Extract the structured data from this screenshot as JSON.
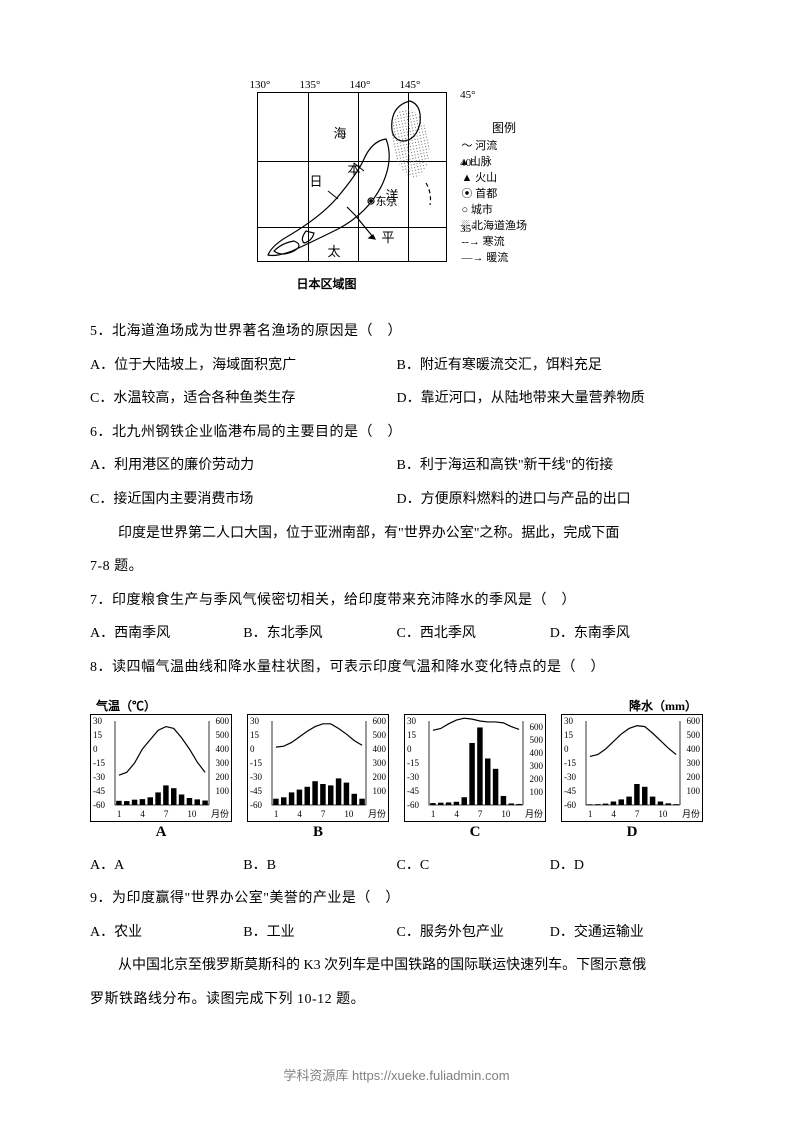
{
  "map": {
    "lons": [
      "130°",
      "135°",
      "140°",
      "145°"
    ],
    "lats": [
      "45°",
      "40°",
      "35°"
    ],
    "labels": {
      "sea": "海",
      "ri": "日",
      "ben": "本",
      "yang": "洋",
      "tai": "太",
      "ping": "平",
      "tokyo": "东京"
    },
    "legendTitle": "图例",
    "legend": [
      "河流",
      "山脉",
      "火山",
      "首都",
      "城市",
      "北海道渔场",
      "寒流",
      "暖流"
    ],
    "legendIcons": [
      "〜",
      "▴",
      "▲",
      "⦿",
      "○",
      "░",
      "--→",
      "—→"
    ],
    "caption": "日本区域图"
  },
  "q5": {
    "stem": "5．北海道渔场成为世界著名渔场的原因是（　）",
    "A": "A．位于大陆坡上，海域面积宽广",
    "B": "B．附近有寒暖流交汇，饵料充足",
    "C": "C．水温较高，适合各种鱼类生存",
    "D": "D．靠近河口，从陆地带来大量营养物质"
  },
  "q6": {
    "stem": "6．北九州钢铁企业临港布局的主要目的是（　）",
    "A": "A．利用港区的廉价劳动力",
    "B": "B．利于海运和高铁\"新干线\"的衔接",
    "C": "C．接近国内主要消费市场",
    "D": "D．方便原料燃料的进口与产品的出口"
  },
  "intro78": "印度是世界第二人口大国，位于亚洲南部，有\"世界办公室\"之称。据此，完成下面",
  "intro78b": "7-8 题。",
  "q7": {
    "stem": "7．印度粮食生产与季风气候密切相关，给印度带来充沛降水的季风是（　）",
    "A": "A．西南季风",
    "B": "B．东北季风",
    "C": "C．西北季风",
    "D": "D．东南季风"
  },
  "q8stem": "8．读四幅气温曲线和降水量柱状图，可表示印度气温和降水变化特点的是（　）",
  "chartHeaders": {
    "left": "气温（℃）",
    "right": "降水（mm）"
  },
  "charts": {
    "monthLabel": "月份",
    "xTicks": [
      "1",
      "4",
      "7",
      "10"
    ],
    "A": {
      "type": "climograph",
      "tempTicks": [
        "30",
        "15",
        "0",
        "-15",
        "-30",
        "-45",
        "-60"
      ],
      "precipTicks": [
        "600",
        "500",
        "400",
        "300",
        "200",
        "100"
      ],
      "temp": [
        -28,
        -25,
        -15,
        0,
        10,
        20,
        24,
        22,
        12,
        0,
        -14,
        -25
      ],
      "precip": [
        30,
        28,
        38,
        42,
        55,
        90,
        140,
        120,
        75,
        50,
        40,
        32
      ],
      "precipMax": 600,
      "barColor": "#000000",
      "lineColor": "#000000",
      "bg": "#ffffff"
    },
    "B": {
      "type": "climograph",
      "tempTicks": [
        "30",
        "15",
        "0",
        "-15",
        "-30",
        "-45",
        "-60"
      ],
      "precipTicks": [
        "600",
        "500",
        "400",
        "300",
        "200",
        "100"
      ],
      "temp": [
        2,
        3,
        7,
        13,
        19,
        24,
        27,
        27,
        22,
        16,
        9,
        4
      ],
      "precip": [
        45,
        55,
        90,
        110,
        130,
        170,
        150,
        140,
        190,
        160,
        80,
        45
      ],
      "precipMax": 600,
      "barColor": "#000000",
      "lineColor": "#000000",
      "bg": "#ffffff"
    },
    "C": {
      "type": "climograph",
      "tempTicks": [
        "30",
        "15",
        "0",
        "-15",
        "-30",
        "-45",
        "-60"
      ],
      "precipTicks": [
        "600",
        "500",
        "400",
        "300",
        "200",
        "100"
      ],
      "temp": [
        20,
        22,
        27,
        31,
        33,
        32,
        30,
        29,
        29,
        28,
        24,
        21
      ],
      "precip": [
        15,
        18,
        20,
        25,
        60,
        480,
        600,
        360,
        280,
        70,
        12,
        8
      ],
      "precipMax": 650,
      "barColor": "#000000",
      "lineColor": "#000000",
      "bg": "#ffffff"
    },
    "D": {
      "type": "climograph",
      "tempTicks": [
        "30",
        "15",
        "0",
        "-15",
        "-30",
        "-45",
        "-60"
      ],
      "precipTicks": [
        "600",
        "500",
        "400",
        "300",
        "200",
        "100"
      ],
      "temp": [
        -8,
        -6,
        0,
        8,
        16,
        22,
        25,
        24,
        17,
        9,
        1,
        -6
      ],
      "precip": [
        5,
        6,
        10,
        25,
        40,
        60,
        150,
        130,
        60,
        25,
        12,
        6
      ],
      "precipMax": 600,
      "barColor": "#000000",
      "lineColor": "#000000",
      "bg": "#ffffff"
    }
  },
  "q8opts": {
    "A": "A．A",
    "B": "B．B",
    "C": "C．C",
    "D": "D．D"
  },
  "q9": {
    "stem": "9．为印度赢得\"世界办公室\"美誉的产业是（　）",
    "A": "A．农业",
    "B": "B．工业",
    "C": "C．服务外包产业",
    "D": "D．交通运输业"
  },
  "intro1012a": "从中国北京至俄罗斯莫斯科的 K3 次列车是中国铁路的国际联运快速列车。下图示意俄",
  "intro1012b": "罗斯铁路线分布。读图完成下列 10-12 题。",
  "footer": "学科资源库 https://xueke.fuliadmin.com"
}
